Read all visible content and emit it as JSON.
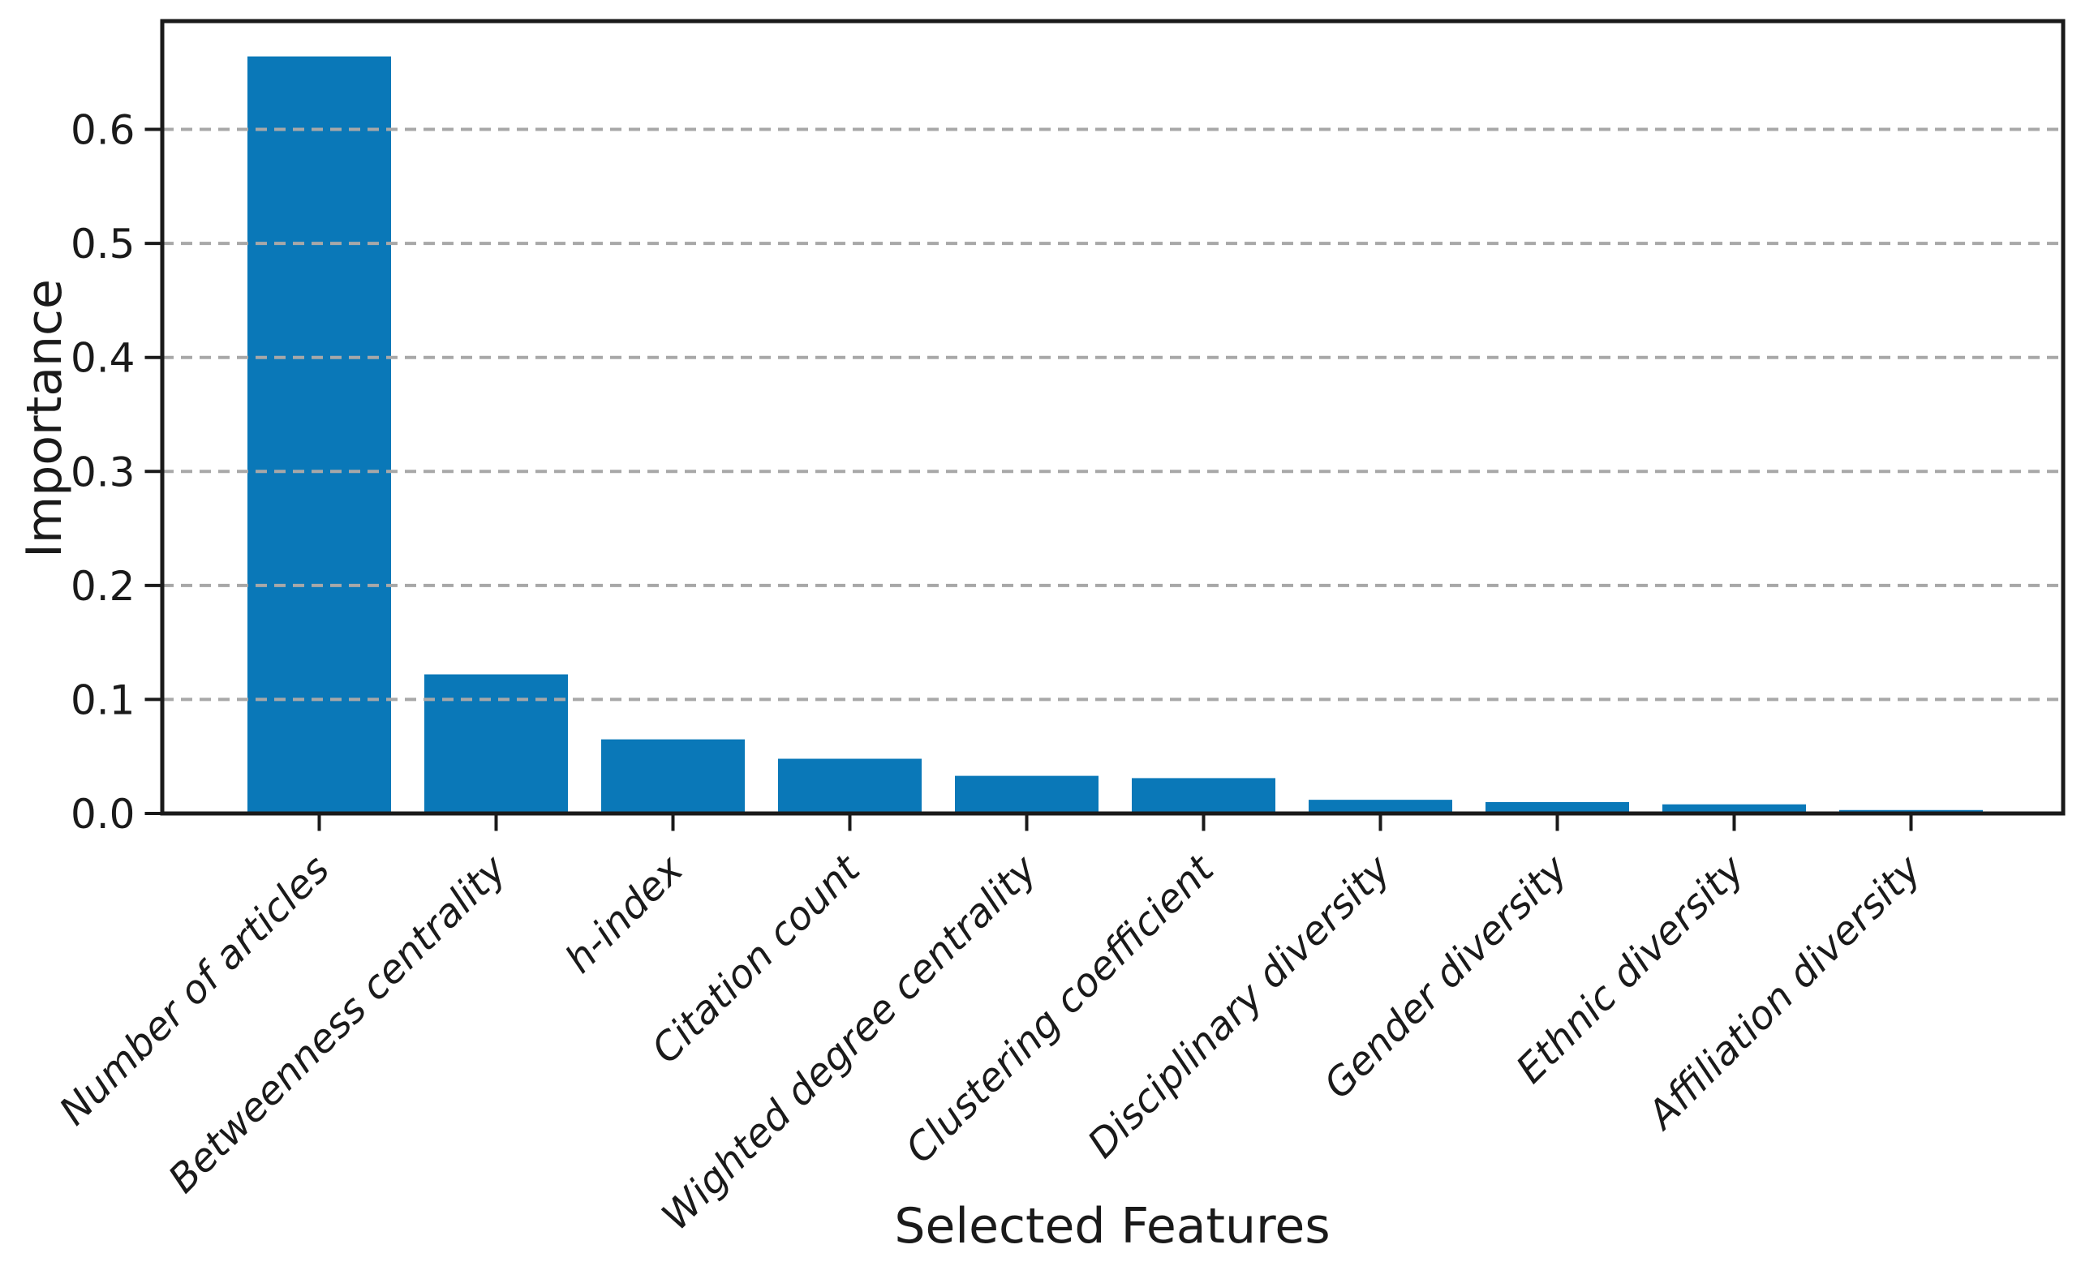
{
  "figure": {
    "xlabel": "Selected Features",
    "ylabel": "Importance"
  },
  "chart_data": {
    "type": "bar",
    "title": "",
    "xlabel": "Selected Features",
    "ylabel": "Importance",
    "categories": [
      "Number of articles",
      "Betweenness centrality",
      "h-index",
      "Citation count",
      "Wighted degree centrality",
      "Clustering coefficient",
      "Disciplinary diversity",
      "Gender diversity",
      "Ethnic diversity",
      "Affiliation diversity"
    ],
    "values": [
      0.664,
      0.122,
      0.065,
      0.048,
      0.033,
      0.031,
      0.012,
      0.01,
      0.008,
      0.003
    ],
    "ylim": [
      0,
      0.695
    ],
    "yticks": [
      0.0,
      0.1,
      0.2,
      0.3,
      0.4,
      0.5,
      0.6
    ],
    "ytick_labels": [
      "0.0",
      "0.1",
      "0.2",
      "0.3",
      "0.4",
      "0.5",
      "0.6"
    ],
    "grid": "horizontal-dashed",
    "grid_over_bars": true,
    "legend": "none",
    "category_label_rotation_deg": 45,
    "category_label_style": "italic",
    "colors": {
      "bar": "#0a78b8",
      "axis": "#1a1a1a",
      "grid": "#a8a8a8",
      "text": "#1a1a1a",
      "background": "#ffffff"
    }
  }
}
